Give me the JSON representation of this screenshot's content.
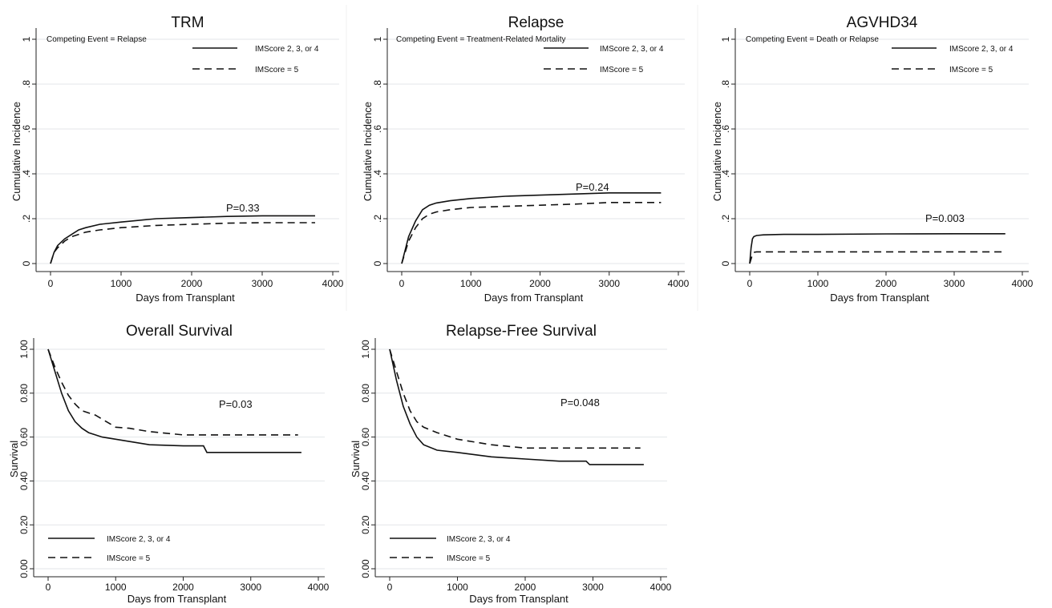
{
  "chart_data": [
    {
      "type": "line",
      "title": "TRM",
      "xlabel": "Days from Transplant",
      "ylabel": "Cumulative Incidence",
      "xlim": [
        0,
        4000
      ],
      "ylim": [
        0,
        1
      ],
      "x_ticks": [
        "0",
        "1000",
        "2000",
        "3000",
        "4000"
      ],
      "y_ticks": [
        "0",
        ".2",
        ".4",
        ".6",
        ".8",
        "1"
      ],
      "y_tick_values": [
        0,
        0.2,
        0.4,
        0.6,
        0.8,
        1.0
      ],
      "grid": true,
      "note": "Competing Event = Relapse",
      "p_value": "P=0.33",
      "series": [
        {
          "name": "IMScore 2, 3, or 4",
          "style": "solid",
          "x": [
            0,
            50,
            100,
            200,
            300,
            400,
            500,
            700,
            1000,
            1500,
            2000,
            2500,
            3000,
            3750
          ],
          "y": [
            0,
            0.05,
            0.08,
            0.11,
            0.13,
            0.15,
            0.16,
            0.175,
            0.185,
            0.2,
            0.205,
            0.21,
            0.213,
            0.213
          ]
        },
        {
          "name": "IMScore = 5",
          "style": "dashed",
          "x": [
            0,
            50,
            100,
            200,
            300,
            400,
            500,
            700,
            1000,
            1500,
            2000,
            2500,
            3000,
            3750
          ],
          "y": [
            0,
            0.05,
            0.07,
            0.1,
            0.12,
            0.13,
            0.14,
            0.15,
            0.16,
            0.17,
            0.175,
            0.18,
            0.182,
            0.182
          ]
        }
      ]
    },
    {
      "type": "line",
      "title": "Relapse",
      "xlabel": "Days from Transplant",
      "ylabel": "Cumulative Incidence",
      "xlim": [
        0,
        4000
      ],
      "ylim": [
        0,
        1
      ],
      "x_ticks": [
        "0",
        "1000",
        "2000",
        "3000",
        "4000"
      ],
      "y_ticks": [
        "0",
        ".2",
        ".4",
        ".6",
        ".8",
        "1"
      ],
      "y_tick_values": [
        0,
        0.2,
        0.4,
        0.6,
        0.8,
        1.0
      ],
      "grid": true,
      "note": "Competing Event = Treatment-Related Mortality",
      "p_value": "P=0.24",
      "series": [
        {
          "name": "IMScore 2, 3, or 4",
          "style": "solid",
          "x": [
            0,
            50,
            100,
            200,
            300,
            400,
            500,
            700,
            1000,
            1500,
            2000,
            2500,
            3000,
            3750
          ],
          "y": [
            0,
            0.06,
            0.12,
            0.19,
            0.24,
            0.26,
            0.27,
            0.28,
            0.29,
            0.3,
            0.305,
            0.31,
            0.315,
            0.315
          ]
        },
        {
          "name": "IMScore = 5",
          "style": "dashed",
          "x": [
            0,
            50,
            100,
            200,
            300,
            400,
            500,
            700,
            1000,
            1500,
            2000,
            2500,
            3000,
            3750
          ],
          "y": [
            0,
            0.05,
            0.1,
            0.16,
            0.2,
            0.22,
            0.23,
            0.24,
            0.25,
            0.255,
            0.26,
            0.265,
            0.272,
            0.272
          ]
        }
      ]
    },
    {
      "type": "line",
      "title": "AGVHD34",
      "xlabel": "Days from Transplant",
      "ylabel": "Cumulative Incidence",
      "xlim": [
        0,
        4000
      ],
      "ylim": [
        0,
        1
      ],
      "x_ticks": [
        "0",
        "1000",
        "2000",
        "3000",
        "4000"
      ],
      "y_ticks": [
        "0",
        ".2",
        ".4",
        ".6",
        ".8",
        "1"
      ],
      "y_tick_values": [
        0,
        0.2,
        0.4,
        0.6,
        0.8,
        1.0
      ],
      "grid": true,
      "note": "Competing Event = Death or Relapse",
      "p_value": "P=0.003",
      "series": [
        {
          "name": "IMScore 2, 3, or 4",
          "style": "solid",
          "x": [
            0,
            20,
            40,
            60,
            100,
            200,
            500,
            1000,
            2000,
            3000,
            3750
          ],
          "y": [
            0,
            0.07,
            0.11,
            0.12,
            0.125,
            0.128,
            0.13,
            0.13,
            0.132,
            0.133,
            0.133
          ]
        },
        {
          "name": "IMScore = 5",
          "style": "dashed",
          "x": [
            0,
            20,
            40,
            60,
            100,
            500,
            1000,
            2000,
            3000,
            3750
          ],
          "y": [
            0,
            0.02,
            0.04,
            0.05,
            0.052,
            0.052,
            0.052,
            0.052,
            0.052,
            0.052
          ]
        }
      ]
    },
    {
      "type": "line",
      "title": "Overall Survival",
      "xlabel": "Days from Transplant",
      "ylabel": "Survival",
      "xlim": [
        0,
        4000
      ],
      "ylim": [
        0,
        1
      ],
      "x_ticks": [
        "0",
        "1000",
        "2000",
        "3000",
        "4000"
      ],
      "y_ticks": [
        "0.00",
        "0.20",
        "0.40",
        "0.60",
        "0.80",
        "1.00"
      ],
      "y_tick_values": [
        0,
        0.2,
        0.4,
        0.6,
        0.8,
        1.0
      ],
      "grid": true,
      "p_value": "P=0.03",
      "legend_position": "bottom-left",
      "series": [
        {
          "name": "IMScore 2, 3, or 4",
          "style": "solid",
          "x": [
            0,
            50,
            100,
            200,
            300,
            400,
            500,
            600,
            700,
            800,
            1000,
            1200,
            1500,
            2000,
            2300,
            2350,
            3000,
            3750
          ],
          "y": [
            1.0,
            0.95,
            0.9,
            0.8,
            0.72,
            0.67,
            0.64,
            0.62,
            0.61,
            0.6,
            0.59,
            0.58,
            0.565,
            0.56,
            0.56,
            0.53,
            0.53,
            0.53
          ]
        },
        {
          "name": "IMScore = 5",
          "style": "dashed",
          "x": [
            0,
            50,
            100,
            200,
            300,
            400,
            500,
            700,
            1000,
            1200,
            1500,
            2000,
            2500,
            3000,
            3700
          ],
          "y": [
            1.0,
            0.96,
            0.92,
            0.85,
            0.79,
            0.75,
            0.72,
            0.7,
            0.645,
            0.64,
            0.625,
            0.61,
            0.61,
            0.61,
            0.61
          ]
        }
      ]
    },
    {
      "type": "line",
      "title": "Relapse-Free Survival",
      "xlabel": "Days from Transplant",
      "ylabel": "Survival",
      "xlim": [
        0,
        4000
      ],
      "ylim": [
        0,
        1
      ],
      "x_ticks": [
        "0",
        "1000",
        "2000",
        "3000",
        "4000"
      ],
      "y_ticks": [
        "0.00",
        "0.20",
        "0.40",
        "0.60",
        "0.80",
        "1.00"
      ],
      "y_tick_values": [
        0,
        0.2,
        0.4,
        0.6,
        0.8,
        1.0
      ],
      "grid": true,
      "p_value": "P=0.048",
      "legend_position": "bottom-left",
      "series": [
        {
          "name": "IMScore 2, 3, or 4",
          "style": "solid",
          "x": [
            0,
            50,
            100,
            200,
            300,
            400,
            500,
            700,
            1000,
            1500,
            2000,
            2500,
            2900,
            2950,
            3750
          ],
          "y": [
            1.0,
            0.93,
            0.86,
            0.74,
            0.66,
            0.6,
            0.565,
            0.54,
            0.53,
            0.51,
            0.5,
            0.49,
            0.49,
            0.475,
            0.475
          ]
        },
        {
          "name": "IMScore = 5",
          "style": "dashed",
          "x": [
            0,
            50,
            100,
            200,
            300,
            400,
            500,
            700,
            1000,
            1500,
            2000,
            2500,
            3000,
            3700
          ],
          "y": [
            1.0,
            0.95,
            0.9,
            0.8,
            0.72,
            0.67,
            0.645,
            0.62,
            0.59,
            0.565,
            0.55,
            0.55,
            0.55,
            0.55
          ]
        }
      ]
    }
  ]
}
